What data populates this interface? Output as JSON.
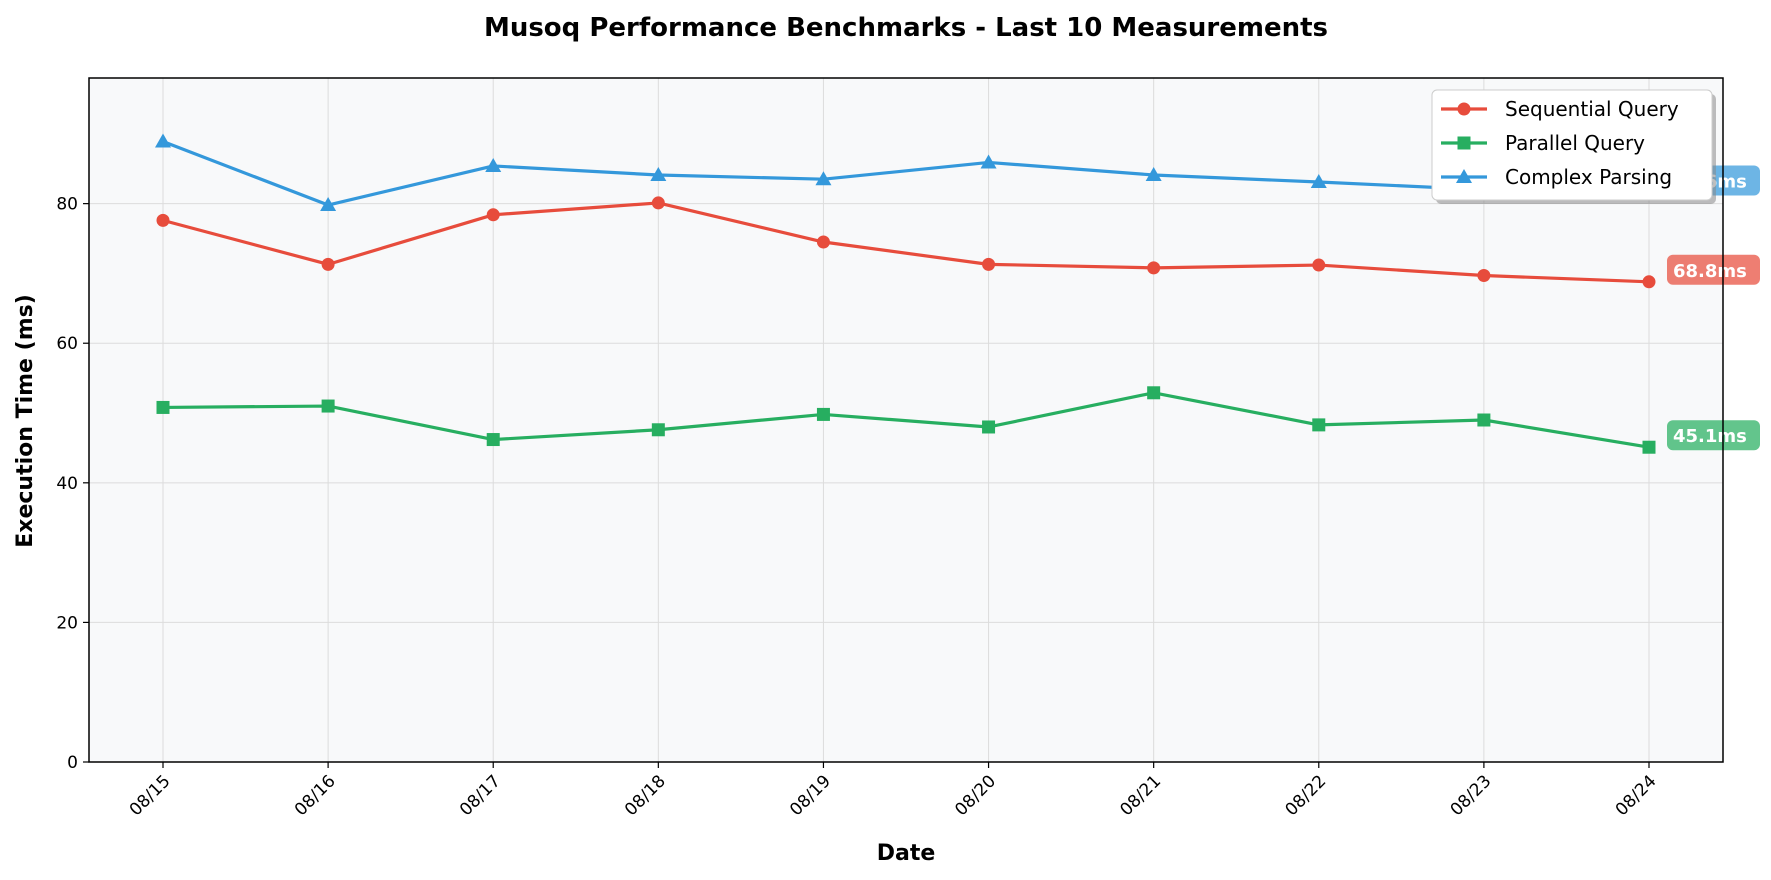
{
  "chart_data": {
    "type": "line",
    "title": "Musoq Performance Benchmarks - Last 10 Measurements",
    "xlabel": "Date",
    "ylabel": "Execution Time (ms)",
    "categories": [
      "08/15",
      "08/16",
      "08/17",
      "08/18",
      "08/19",
      "08/20",
      "08/21",
      "08/22",
      "08/23",
      "08/24"
    ],
    "ylim": [
      0,
      98
    ],
    "yticks": [
      0,
      20,
      40,
      60,
      80
    ],
    "grid": true,
    "legend": "top-right",
    "series": [
      {
        "name": "Sequential Query",
        "color": "#e74c3c",
        "marker": "circle",
        "values": [
          77.6,
          71.3,
          78.4,
          80.1,
          74.5,
          71.3,
          70.8,
          71.2,
          69.7,
          68.8
        ],
        "last_label": "68.8ms"
      },
      {
        "name": "Parallel Query",
        "color": "#27ae60",
        "marker": "square",
        "values": [
          50.8,
          51.0,
          46.2,
          47.6,
          49.8,
          48.0,
          52.9,
          48.3,
          49.0,
          45.1
        ],
        "last_label": "45.1ms"
      },
      {
        "name": "Complex Parsing",
        "color": "#3498db",
        "marker": "triangle",
        "values": [
          88.9,
          79.8,
          85.4,
          84.1,
          83.5,
          85.9,
          84.1,
          83.1,
          82.0,
          81.6
        ],
        "last_label": "81.6ms"
      }
    ]
  }
}
